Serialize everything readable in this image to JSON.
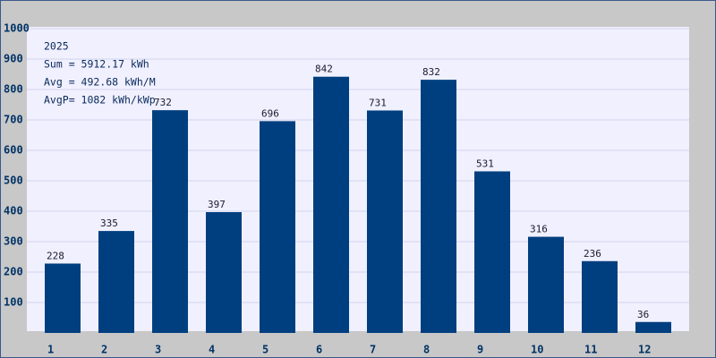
{
  "chart_data": {
    "type": "bar",
    "annotations": [
      "2025",
      "Sum = 5912.17 kWh",
      "Avg = 492.68 kWh/M",
      "AvgP= 1082 kWh/kWp"
    ],
    "categories": [
      "1",
      "2",
      "3",
      "4",
      "5",
      "6",
      "7",
      "8",
      "9",
      "10",
      "11",
      "12"
    ],
    "values": [
      228,
      335,
      732,
      397,
      696,
      842,
      731,
      832,
      531,
      316,
      236,
      36
    ],
    "color": "#003f7f",
    "ylim": [
      0,
      1000
    ],
    "yticks": [
      100,
      200,
      300,
      400,
      500,
      600,
      700,
      800,
      900,
      1000
    ],
    "grid": true
  }
}
